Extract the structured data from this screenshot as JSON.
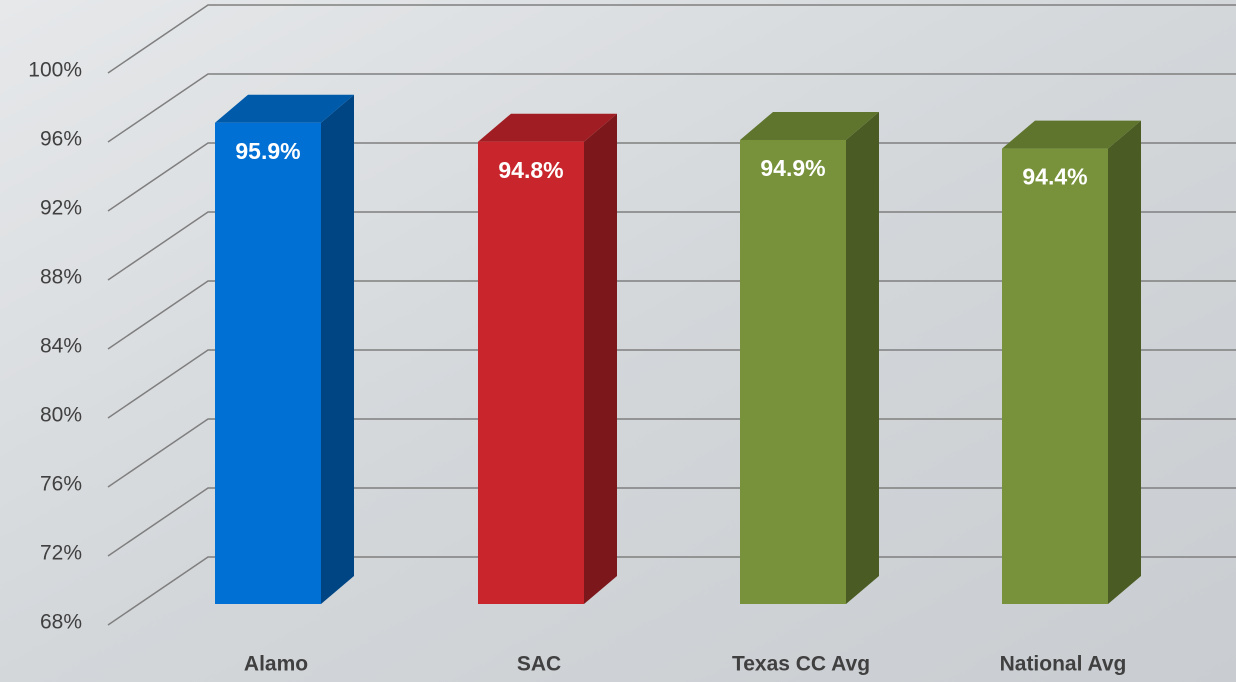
{
  "chart_data": {
    "type": "bar3d",
    "categories": [
      "Alamo",
      "SAC",
      "Texas CC Avg",
      "National Avg"
    ],
    "values": [
      95.9,
      94.8,
      94.9,
      94.4
    ],
    "value_labels": [
      "95.9%",
      "94.8%",
      "94.9%",
      "94.4%"
    ],
    "colors": [
      "#0070d4",
      "#c8262c",
      "#77923a",
      "#77923a"
    ],
    "ylim": [
      68,
      100
    ],
    "yticks": [
      {
        "value": 68,
        "label": "68%"
      },
      {
        "value": 72,
        "label": "72%"
      },
      {
        "value": 76,
        "label": "76%"
      },
      {
        "value": 80,
        "label": "80%"
      },
      {
        "value": 84,
        "label": "84%"
      },
      {
        "value": 88,
        "label": "88%"
      },
      {
        "value": 92,
        "label": "92%"
      },
      {
        "value": 96,
        "label": "96%"
      },
      {
        "value": 100,
        "label": "100%"
      }
    ],
    "grid": true
  }
}
